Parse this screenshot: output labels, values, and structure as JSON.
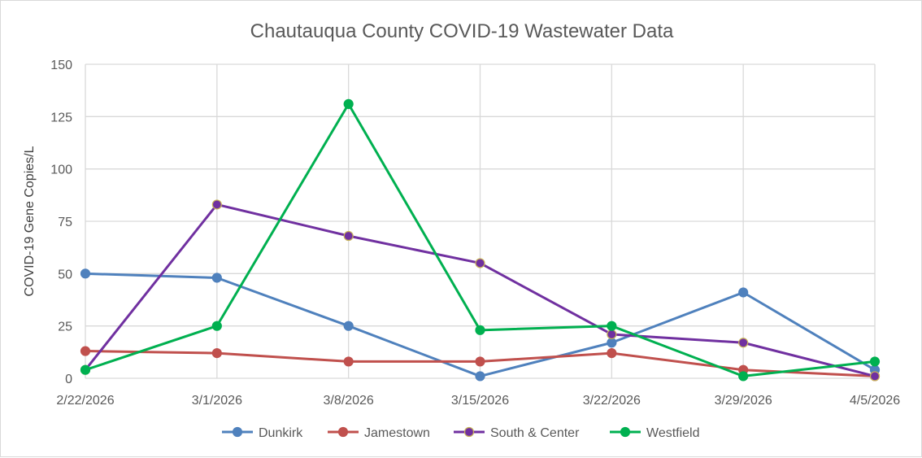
{
  "chart_data": {
    "type": "line",
    "title": "Chautauqua County COVID-19 Wastewater Data",
    "xlabel": "",
    "ylabel": "COVID-19 Gene Copies/L",
    "ylim": [
      0,
      150
    ],
    "yticks": [
      0,
      25,
      50,
      75,
      100,
      125,
      150
    ],
    "grid": true,
    "legend_position": "bottom",
    "x": [
      "2/22/2026",
      "3/1/2026",
      "3/8/2026",
      "3/15/2026",
      "3/22/2026",
      "3/29/2026",
      "4/5/2026"
    ],
    "series": [
      {
        "name": "Dunkirk",
        "color": "#4f81bd",
        "marker_fill": "#4f81bd",
        "values": [
          50,
          48,
          25,
          1,
          17,
          41,
          4
        ]
      },
      {
        "name": "Jamestown",
        "color": "#c0504d",
        "marker_fill": "#c0504d",
        "values": [
          13,
          12,
          8,
          8,
          12,
          4,
          1
        ]
      },
      {
        "name": "South & Center",
        "color": "#7030a0",
        "marker_fill": "#7030a0",
        "marker_stroke": "#c9b458",
        "values": [
          4,
          83,
          68,
          55,
          21,
          17,
          1
        ]
      },
      {
        "name": "Westfield",
        "color": "#00b050",
        "marker_fill": "#00b050",
        "values": [
          4,
          25,
          131,
          23,
          25,
          1,
          8
        ]
      }
    ]
  }
}
